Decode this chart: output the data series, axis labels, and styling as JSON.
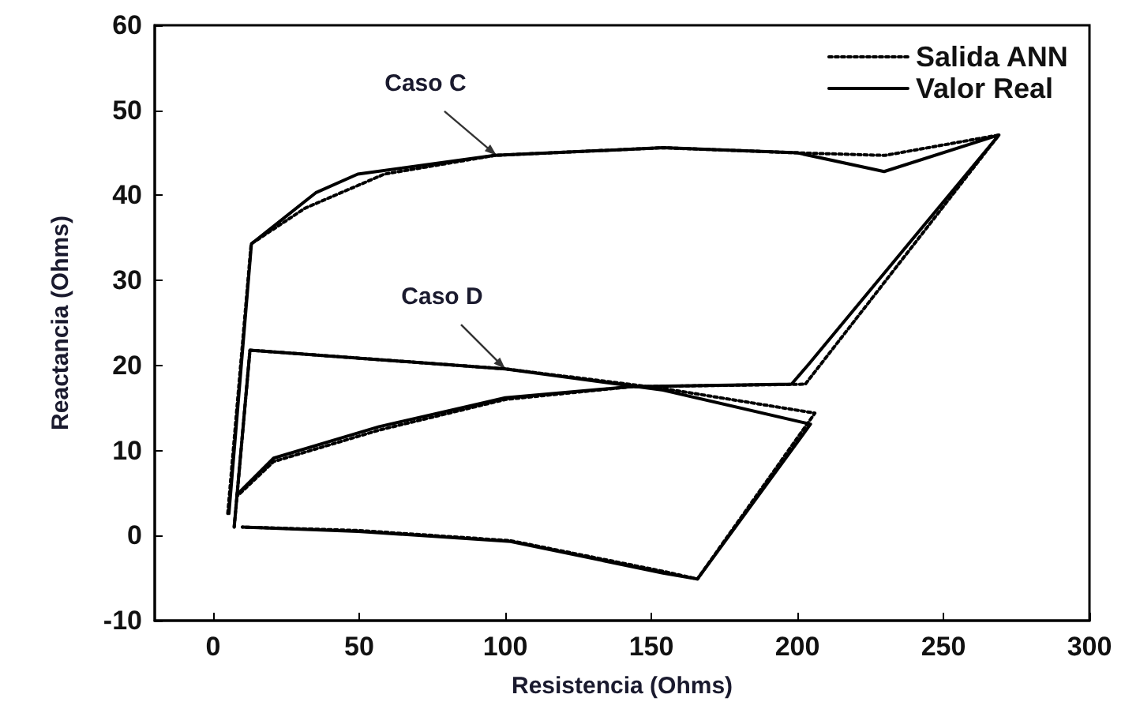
{
  "chart_data": {
    "type": "line",
    "xlabel": "Resistencia (Ohms)",
    "ylabel": "Reactancia (Ohms)",
    "xlim": [
      -20,
      300
    ],
    "xticks": [
      0,
      50,
      100,
      150,
      200,
      250,
      300
    ],
    "ylim": [
      -10,
      60
    ],
    "yticks": [
      -10,
      0,
      10,
      20,
      30,
      40,
      50,
      60
    ],
    "grid": false,
    "legend": "top right",
    "marker": "none",
    "annotations": [
      {
        "text": "Caso C",
        "x": 97,
        "y": 44.7
      },
      {
        "text": "Caso D",
        "x": 100,
        "y": 19.6
      }
    ],
    "series": [
      {
        "name": "Salida ANN",
        "color": "#000000",
        "line_style": "dotted",
        "x": [
          5,
          13,
          31.5,
          58.6,
          96.4,
          154,
          200,
          230,
          269,
          202.7,
          143,
          100,
          56.8,
          20.7,
          8.1
        ],
        "values": [
          2.6,
          34.3,
          38.5,
          42.5,
          44.7,
          45.6,
          45,
          44.7,
          47.1,
          17.8,
          17.5,
          16,
          12.4,
          8.7,
          4.6
        ]
      },
      {
        "name": "Valor Real",
        "color": "#000000",
        "line_style": "solid",
        "x": [
          5.4,
          13.1,
          35.1,
          49.5,
          96.4,
          154,
          200,
          229.7,
          269,
          204,
          198,
          143,
          100,
          56.8,
          20.7,
          8.1
        ],
        "values": [
          2.6,
          34.3,
          40.3,
          42.5,
          44.7,
          45.6,
          45,
          42.8,
          47.1,
          20.2,
          17.8,
          17.5,
          16.2,
          12.8,
          9.1,
          4.8
        ]
      },
      {
        "color": "#000000",
        "line_style": "dotted",
        "x": [
          7.2,
          12.6,
          100,
          154,
          206,
          165.8,
          154,
          101.8,
          49.6,
          10
        ],
        "values": [
          1,
          21.8,
          19.6,
          17.3,
          14.4,
          -5.1,
          -4.2,
          -0.6,
          0.6,
          1
        ]
      },
      {
        "color": "#000000",
        "line_style": "solid",
        "x": [
          7.2,
          12.6,
          100,
          154,
          204.5,
          165.8,
          154,
          101.8,
          49.6,
          10
        ],
        "values": [
          1,
          21.8,
          19.6,
          17.1,
          13.1,
          -5.1,
          -4.4,
          -0.7,
          0.5,
          1
        ]
      }
    ]
  }
}
